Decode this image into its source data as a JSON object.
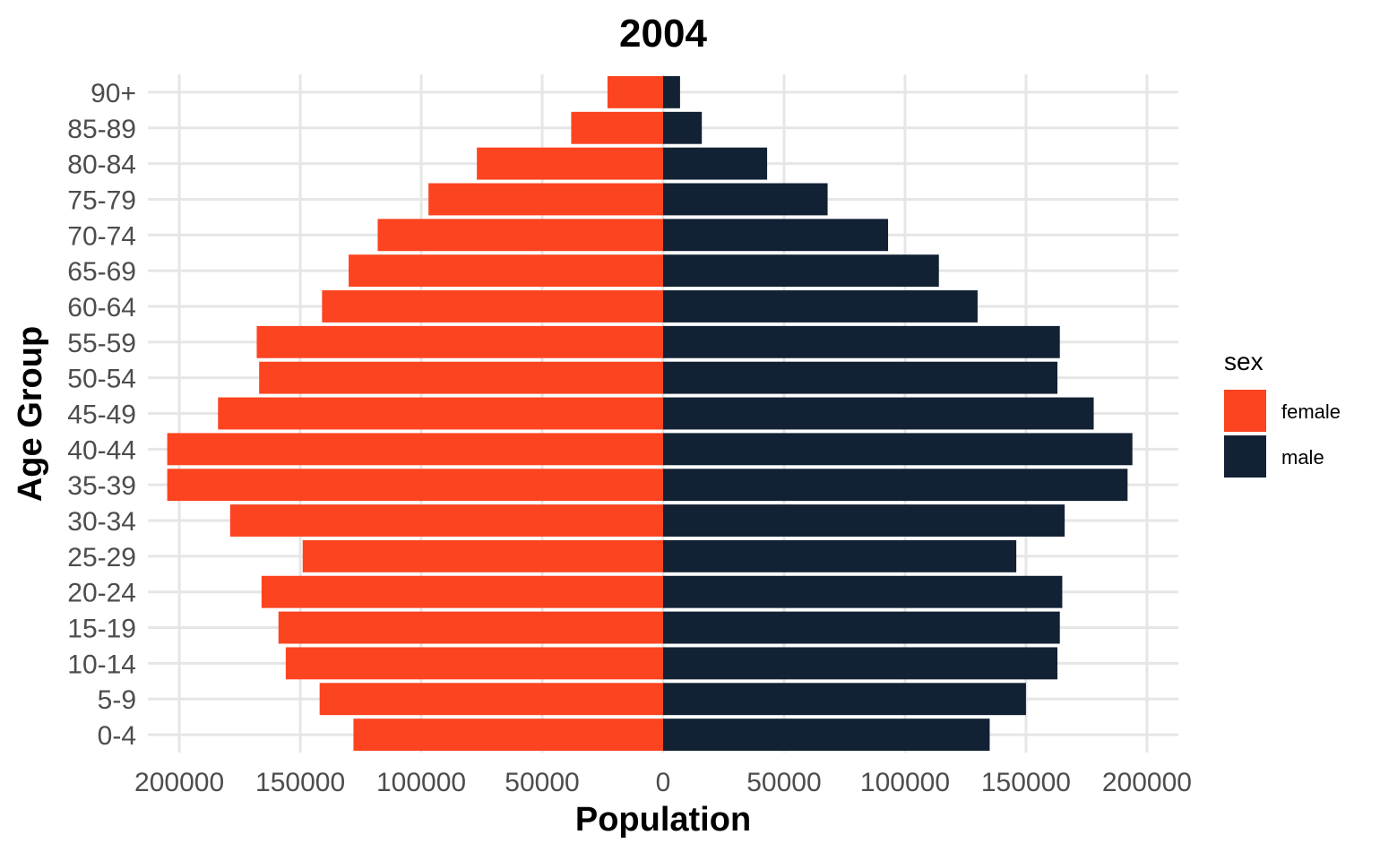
{
  "chart_data": {
    "type": "bar",
    "orientation": "horizontal",
    "title": "2004",
    "xlabel": "Population",
    "ylabel": "Age Group",
    "categories": [
      "0-4",
      "5-9",
      "10-14",
      "15-19",
      "20-24",
      "25-29",
      "30-34",
      "35-39",
      "40-44",
      "45-49",
      "50-54",
      "55-59",
      "60-64",
      "65-69",
      "70-74",
      "75-79",
      "80-84",
      "85-89",
      "90+"
    ],
    "series": [
      {
        "name": "female",
        "color": "#fc4420",
        "values": [
          128000,
          142000,
          156000,
          159000,
          166000,
          149000,
          179000,
          205000,
          205000,
          184000,
          167000,
          168000,
          141000,
          130000,
          118000,
          97000,
          77000,
          38000,
          23000
        ]
      },
      {
        "name": "male",
        "color": "#132134",
        "values": [
          135000,
          150000,
          163000,
          164000,
          165000,
          146000,
          166000,
          192000,
          194000,
          178000,
          163000,
          164000,
          130000,
          114000,
          93000,
          68000,
          43000,
          16000,
          7000
        ]
      }
    ],
    "xlim": [
      -213000,
      213000
    ],
    "x_ticks": [
      {
        "value": -200000,
        "label": "200000"
      },
      {
        "value": -150000,
        "label": "150000"
      },
      {
        "value": -100000,
        "label": "100000"
      },
      {
        "value": -50000,
        "label": "50000"
      },
      {
        "value": 0,
        "label": "0"
      },
      {
        "value": 50000,
        "label": "50000"
      },
      {
        "value": 100000,
        "label": "100000"
      },
      {
        "value": 150000,
        "label": "150000"
      },
      {
        "value": 200000,
        "label": "200000"
      }
    ],
    "grid": true,
    "legend": {
      "title": "sex",
      "placement": "right",
      "items": [
        "female",
        "male"
      ]
    }
  }
}
